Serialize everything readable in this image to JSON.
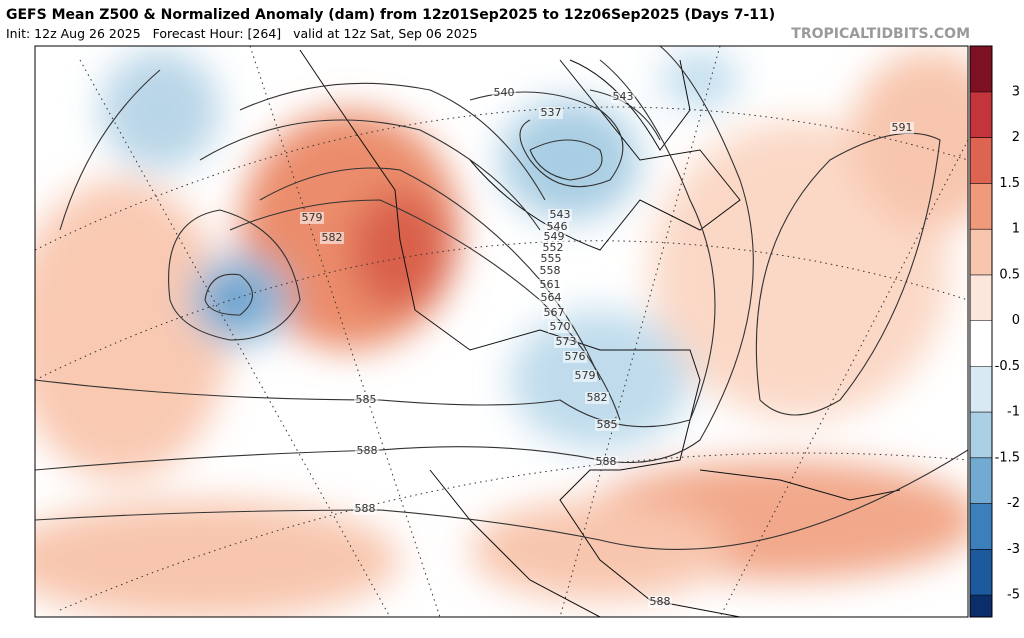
{
  "header": {
    "title": "GEFS Mean Z500 & Normalized Anomaly (dam) from 12z01Sep2025 to 12z06Sep2025 (Days 7-11)",
    "subtitle": "Init: 12z Aug 26 2025   Forecast Hour: [264]   valid at 12z Sat, Sep 06 2025",
    "site": "TROPICALTIDBITS.COM"
  },
  "colorbar": {
    "ticks": [
      3,
      2,
      1.5,
      1,
      0.5,
      0,
      -0.5,
      -1,
      -1.5,
      -2,
      -3,
      -5
    ],
    "colors": [
      "#7d1022",
      "#c3343d",
      "#dd6450",
      "#f09a7c",
      "#f8c6ae",
      "#fde7dd",
      "#ffffff",
      "#d8e9f3",
      "#abd0e5",
      "#72aad2",
      "#3c80bb",
      "#1c5a9d",
      "#0b2d69"
    ]
  },
  "contour_labels": [
    540,
    537,
    543,
    591,
    579,
    582,
    543,
    546,
    549,
    552,
    555,
    558,
    561,
    564,
    567,
    570,
    573,
    576,
    579,
    582,
    585,
    588,
    585,
    588,
    588,
    588
  ]
}
